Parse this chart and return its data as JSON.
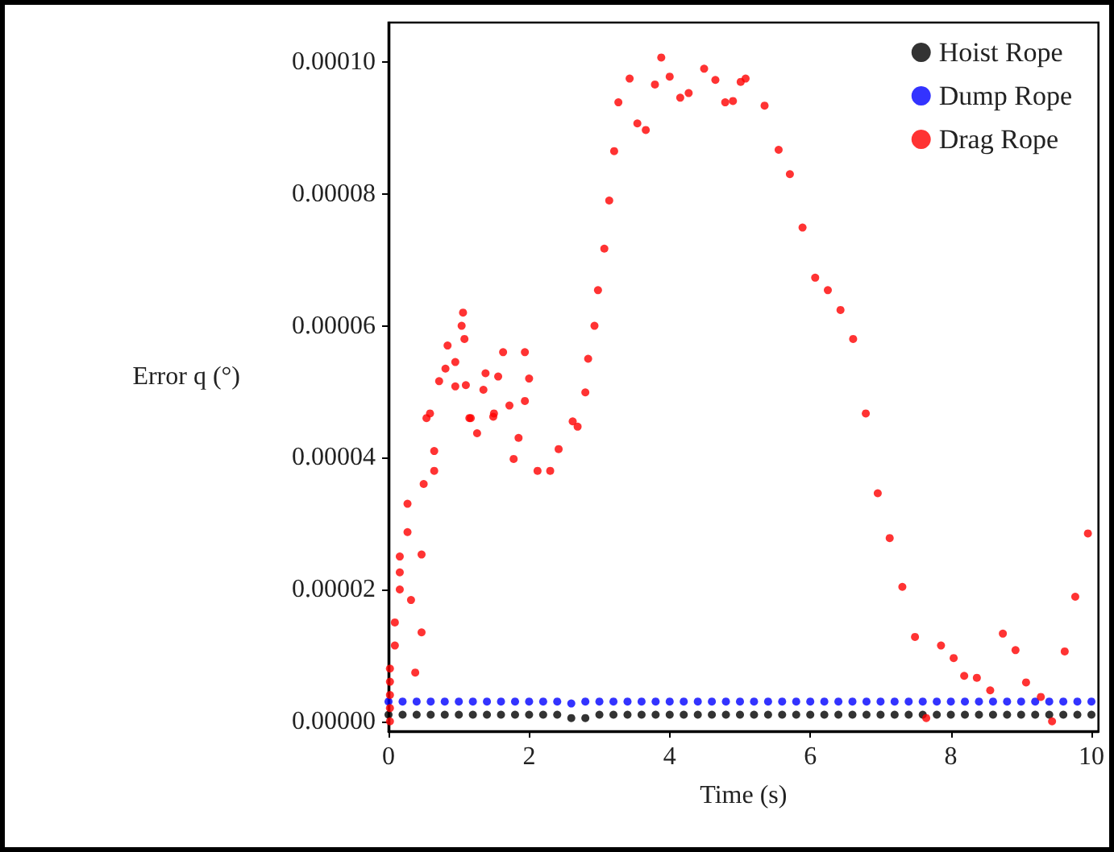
{
  "chart_data": {
    "type": "scatter",
    "xlabel": "Time (s)",
    "ylabel": "Error q (°)",
    "xlim": [
      0,
      10.1
    ],
    "xticks": [
      0,
      2,
      4,
      6,
      8,
      10
    ],
    "ylim": [
      -1.5e-06,
      0.000106
    ],
    "yticks": [
      {
        "value": 0,
        "label": "0.00000"
      },
      {
        "value": 2e-05,
        "label": "0.00002"
      },
      {
        "value": 4e-05,
        "label": "0.00004"
      },
      {
        "value": 6e-05,
        "label": "0.00006"
      },
      {
        "value": 8e-05,
        "label": "0.00008"
      },
      {
        "value": 0.0001,
        "label": "0.00010"
      }
    ],
    "grid": false,
    "legend": "top right",
    "marker": "circle",
    "series": [
      {
        "name": "Hoist Rope",
        "color": "#000000",
        "x": [
          0,
          0.2,
          0.4,
          0.6,
          0.8,
          1,
          1.2,
          1.4,
          1.6,
          1.8,
          2,
          2.2,
          2.4,
          2.6,
          2.8,
          3,
          3.2,
          3.4,
          3.6,
          3.8,
          4,
          4.2,
          4.4,
          4.6,
          4.8,
          5,
          5.2,
          5.4,
          5.6,
          5.8,
          6,
          6.2,
          6.4,
          6.6,
          6.8,
          7,
          7.2,
          7.4,
          7.6,
          7.8,
          8,
          8.2,
          8.4,
          8.6,
          8.8,
          9,
          9.2,
          9.4,
          9.6,
          9.8,
          10
        ],
        "values": [
          1e-06,
          1e-06,
          1e-06,
          1e-06,
          1e-06,
          1e-06,
          1e-06,
          1e-06,
          1e-06,
          1e-06,
          1e-06,
          1e-06,
          1e-06,
          5e-07,
          5e-07,
          1e-06,
          1e-06,
          1e-06,
          1e-06,
          1e-06,
          1e-06,
          1e-06,
          1e-06,
          1e-06,
          1e-06,
          1e-06,
          1e-06,
          1e-06,
          1e-06,
          1e-06,
          1e-06,
          1e-06,
          1e-06,
          1e-06,
          1e-06,
          1e-06,
          1e-06,
          1e-06,
          1e-06,
          1e-06,
          1e-06,
          1e-06,
          1e-06,
          1e-06,
          1e-06,
          1e-06,
          1e-06,
          1e-06,
          1e-06,
          1e-06,
          1e-06
        ]
      },
      {
        "name": "Dump Rope",
        "color": "#0000ff",
        "x": [
          0,
          0.2,
          0.4,
          0.6,
          0.8,
          1,
          1.2,
          1.4,
          1.6,
          1.8,
          2,
          2.2,
          2.4,
          2.6,
          2.8,
          3,
          3.2,
          3.4,
          3.6,
          3.8,
          4,
          4.2,
          4.4,
          4.6,
          4.8,
          5,
          5.2,
          5.4,
          5.6,
          5.8,
          6,
          6.2,
          6.4,
          6.6,
          6.8,
          7,
          7.2,
          7.4,
          7.6,
          7.8,
          8,
          8.2,
          8.4,
          8.6,
          8.8,
          9,
          9.2,
          9.4,
          9.6,
          9.8,
          10
        ],
        "values": [
          3e-06,
          3e-06,
          3e-06,
          3e-06,
          3e-06,
          3e-06,
          3e-06,
          3e-06,
          3e-06,
          3e-06,
          3e-06,
          3e-06,
          3e-06,
          2.7e-06,
          3e-06,
          3e-06,
          3e-06,
          3e-06,
          3e-06,
          3e-06,
          3e-06,
          3e-06,
          3e-06,
          3e-06,
          3e-06,
          3e-06,
          3e-06,
          3e-06,
          3e-06,
          3e-06,
          3e-06,
          3e-06,
          3e-06,
          3e-06,
          3e-06,
          3e-06,
          3e-06,
          3e-06,
          3e-06,
          3e-06,
          3e-06,
          3e-06,
          3e-06,
          3e-06,
          3e-06,
          3e-06,
          3e-06,
          3e-06,
          3e-06,
          3e-06,
          3e-06
        ]
      },
      {
        "name": "Drag Rope",
        "color": "#ff0000",
        "x": [
          0.02,
          0.02,
          0.02,
          0.02,
          0.02,
          0.09,
          0.09,
          0.16,
          0.16,
          0.16,
          0.27,
          0.27,
          0.32,
          0.38,
          0.47,
          0.47,
          0.5,
          0.54,
          0.59,
          0.65,
          0.65,
          0.72,
          0.81,
          0.84,
          0.95,
          0.95,
          1.04,
          1.06,
          1.08,
          1.1,
          1.15,
          1.17,
          1.26,
          1.35,
          1.38,
          1.49,
          1.5,
          1.56,
          1.63,
          1.72,
          1.78,
          1.85,
          1.94,
          1.94,
          2.0,
          2.12,
          2.3,
          2.42,
          2.62,
          2.69,
          2.8,
          2.84,
          2.93,
          2.98,
          3.07,
          3.14,
          3.21,
          3.27,
          3.43,
          3.54,
          3.66,
          3.79,
          3.88,
          4.0,
          4.15,
          4.27,
          4.49,
          4.65,
          4.79,
          4.9,
          5.01,
          5.08,
          5.35,
          5.55,
          5.71,
          5.89,
          6.07,
          6.25,
          6.43,
          6.61,
          6.79,
          6.96,
          7.13,
          7.31,
          7.49,
          7.65,
          7.86,
          8.04,
          8.19,
          8.37,
          8.56,
          8.74,
          8.92,
          9.07,
          9.28,
          9.44,
          9.62,
          9.77,
          9.95
        ],
        "values": [
          0,
          2e-06,
          4e-06,
          6e-06,
          8e-06,
          1.15e-05,
          1.5e-05,
          2e-05,
          2.26e-05,
          2.5e-05,
          2.87e-05,
          3.3e-05,
          1.84e-05,
          7.4e-06,
          1.35e-05,
          2.53e-05,
          3.6e-05,
          4.6e-05,
          4.67e-05,
          3.8e-05,
          4.1e-05,
          5.16e-05,
          5.35e-05,
          5.7e-05,
          5.45e-05,
          5.08e-05,
          6e-05,
          6.2e-05,
          5.8e-05,
          5.1e-05,
          4.6e-05,
          4.6e-05,
          4.37e-05,
          5.03e-05,
          5.28e-05,
          4.62e-05,
          4.67e-05,
          5.23e-05,
          5.6e-05,
          4.79e-05,
          3.98e-05,
          4.3e-05,
          4.86e-05,
          5.6e-05,
          5.2e-05,
          3.8e-05,
          3.8e-05,
          4.13e-05,
          4.55e-05,
          4.47e-05,
          4.99e-05,
          5.5e-05,
          6e-05,
          6.54e-05,
          7.17e-05,
          7.9e-05,
          8.65e-05,
          9.39e-05,
          9.75e-05,
          9.07e-05,
          8.97e-05,
          9.66e-05,
          0.0001007,
          9.78e-05,
          9.46e-05,
          9.53e-05,
          9.9e-05,
          9.73e-05,
          9.39e-05,
          9.41e-05,
          9.7e-05,
          9.75e-05,
          9.34e-05,
          8.67e-05,
          8.3e-05,
          7.49e-05,
          6.73e-05,
          6.54e-05,
          6.24e-05,
          5.8e-05,
          4.67e-05,
          3.46e-05,
          2.78e-05,
          2.04e-05,
          1.28e-05,
          5e-07,
          1.15e-05,
          9.6e-06,
          6.9e-06,
          6.6e-06,
          4.7e-06,
          1.33e-05,
          1.08e-05,
          5.9e-06,
          3.7e-06,
          0,
          1.06e-05,
          1.89e-05,
          2.85e-05
        ]
      }
    ]
  }
}
